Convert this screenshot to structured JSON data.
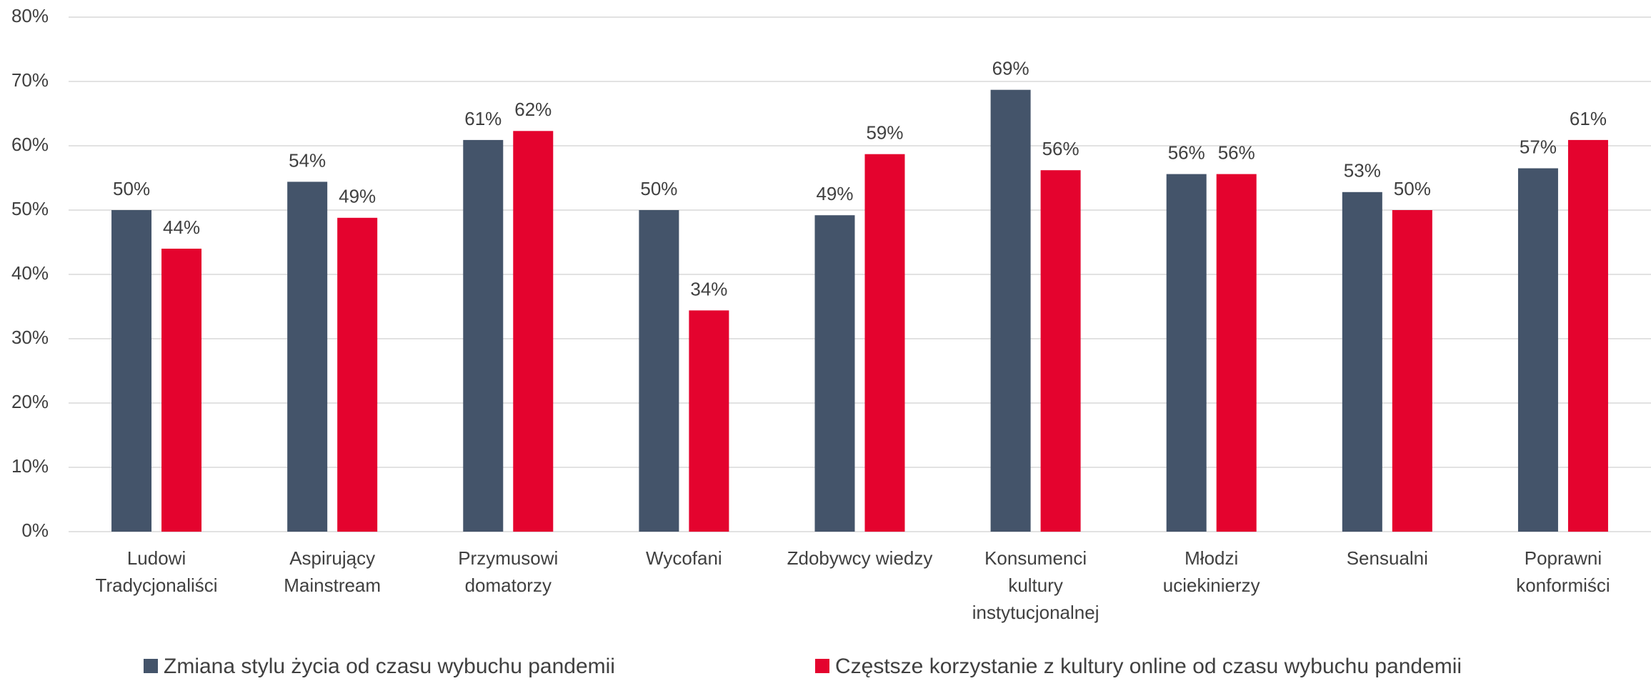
{
  "chart_data": {
    "type": "bar",
    "categories": [
      "Ludowi\nTradycjonaliści",
      "Aspirujący\nMainstream",
      "Przymusowi\ndomatorzy",
      "Wycofani",
      "Zdobywcy wiedzy",
      "Konsumenci\nkultury\ninstytucjonalnej",
      "Młodzi\nuciekinierzy",
      "Sensualni",
      "Poprawni\nkonformiści"
    ],
    "series": [
      {
        "name": "Zmiana stylu życia od czasu wybuchu pandemii",
        "color": "#44546a",
        "values": [
          50,
          54.4,
          60.9,
          50,
          49.2,
          68.7,
          55.6,
          52.8,
          56.5
        ],
        "value_labels": [
          "50%",
          "54%",
          "61%",
          "50%",
          "49%",
          "69%",
          "56%",
          "53%",
          "57%"
        ]
      },
      {
        "name": "Częstsze korzystanie z kultury online od czasu wybuchu pandemii",
        "color": "#e4032e",
        "values": [
          44.0,
          48.8,
          62.3,
          34.4,
          58.7,
          56.2,
          55.6,
          50,
          60.9
        ],
        "value_labels": [
          "44%",
          "49%",
          "62%",
          "34%",
          "59%",
          "56%",
          "56%",
          "50%",
          "61%"
        ]
      }
    ],
    "ylim": [
      0,
      80
    ],
    "yticks": [
      {
        "value": 0,
        "label": "0%"
      },
      {
        "value": 10,
        "label": "10%"
      },
      {
        "value": 20,
        "label": "20%"
      },
      {
        "value": 30,
        "label": "30%"
      },
      {
        "value": 40,
        "label": "40%"
      },
      {
        "value": 50,
        "label": "50%"
      },
      {
        "value": 60,
        "label": "60%"
      },
      {
        "value": 70,
        "label": "70%"
      },
      {
        "value": 80,
        "label": "80%"
      }
    ],
    "grid": true,
    "legend": "bottom"
  }
}
